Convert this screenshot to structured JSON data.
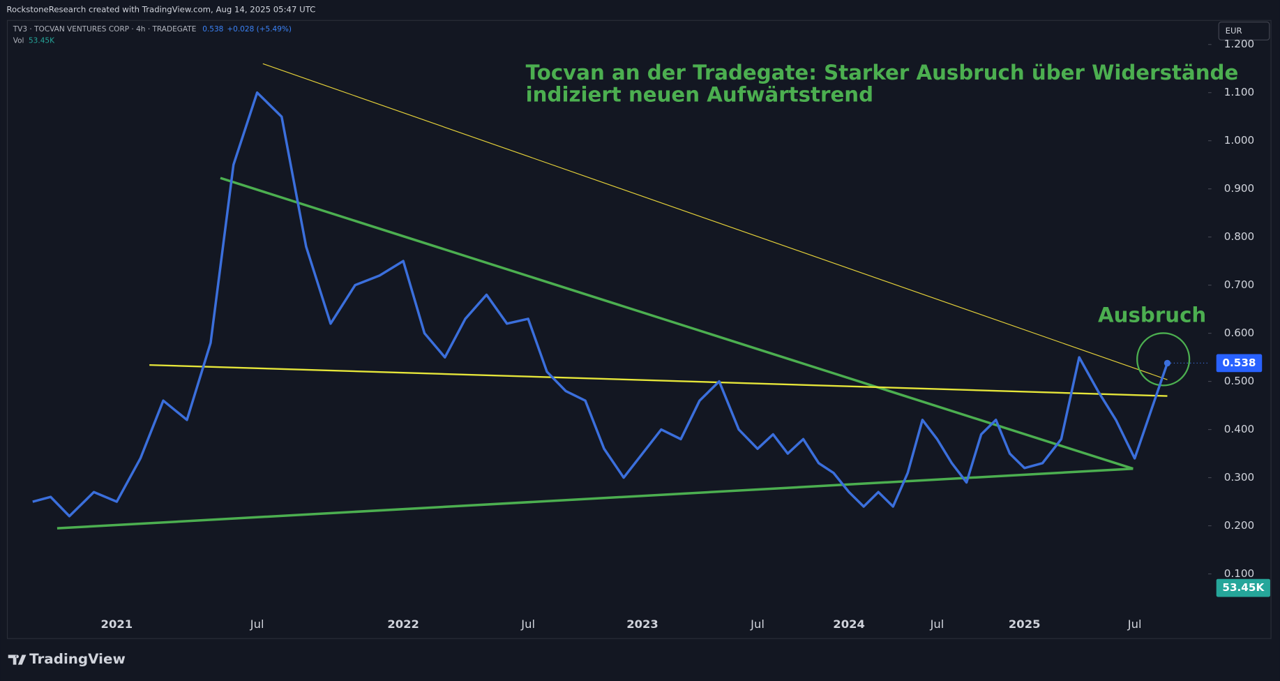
{
  "header": {
    "text": "RockstoneResearch created with TradingView.com, Aug 14, 2025 05:47 UTC"
  },
  "legend": {
    "change": "+0.028 (+5.49%)",
    "vol_label": "Vol",
    "vol_value": "53.45K",
    "currency": "EUR"
  },
  "footer": {
    "brand": "TradingView"
  },
  "chart_data": {
    "type": "line",
    "title": [
      "Tocvan an der Tradegate: Starker Ausbruch über Widerstände",
      "indiziert neuen Aufwärtstrend"
    ],
    "annotation": "Ausbruch",
    "categories": [
      null,
      null,
      null,
      null,
      "2021",
      null,
      null,
      null,
      null,
      null,
      "Jul",
      null,
      null,
      null,
      null,
      null,
      "2022",
      null,
      null,
      null,
      null,
      null,
      "Jul",
      null,
      null,
      null,
      null,
      null,
      "2023",
      null,
      null,
      null,
      null,
      null,
      "Jul",
      null,
      null,
      null,
      null,
      null,
      "2024",
      null,
      null,
      null,
      null,
      null,
      "Jul",
      null,
      null,
      null,
      null,
      null,
      "2025",
      null,
      null,
      null,
      null,
      null,
      "Jul",
      null
    ],
    "series": [
      {
        "name": "TV3 · TOCVAN VENTURES CORP · 4h · TRADEGATE",
        "color": "#3b6fdc",
        "values": [
          0.25,
          0.26,
          0.22,
          0.27,
          0.25,
          0.34,
          0.46,
          0.42,
          0.58,
          0.95,
          1.1,
          1.05,
          0.78,
          0.62,
          0.7,
          0.72,
          0.75,
          0.6,
          0.55,
          0.63,
          0.68,
          0.62,
          0.63,
          0.52,
          0.48,
          0.46,
          0.36,
          0.3,
          0.35,
          0.4,
          0.38,
          0.46,
          0.5,
          0.4,
          0.36,
          0.39,
          0.35,
          0.38,
          0.33,
          0.31,
          0.27,
          0.24,
          0.27,
          0.24,
          0.31,
          0.42,
          0.38,
          0.33,
          0.29,
          0.39,
          0.42,
          0.35,
          0.32,
          0.33,
          0.38,
          0.55,
          0.48,
          0.42,
          0.34,
          0.538
        ]
      }
    ],
    "ylim": [
      0.02,
      1.25
    ],
    "yticks": [
      {
        "value": 0.1,
        "label": "0.100"
      },
      {
        "value": 0.2,
        "label": "0.200"
      },
      {
        "value": 0.3,
        "label": "0.300"
      },
      {
        "value": 0.4,
        "label": "0.400"
      },
      {
        "value": 0.5,
        "label": "0.500"
      },
      {
        "value": 0.6,
        "label": "0.600"
      },
      {
        "value": 0.7,
        "label": "0.700"
      },
      {
        "value": 0.8,
        "label": "0.800"
      },
      {
        "value": 0.9,
        "label": "0.900"
      },
      {
        "value": 1.0,
        "label": "1.000"
      },
      {
        "value": 1.1,
        "label": "1.100"
      },
      {
        "value": 1.2,
        "label": "1.200"
      }
    ],
    "grid": false
  }
}
